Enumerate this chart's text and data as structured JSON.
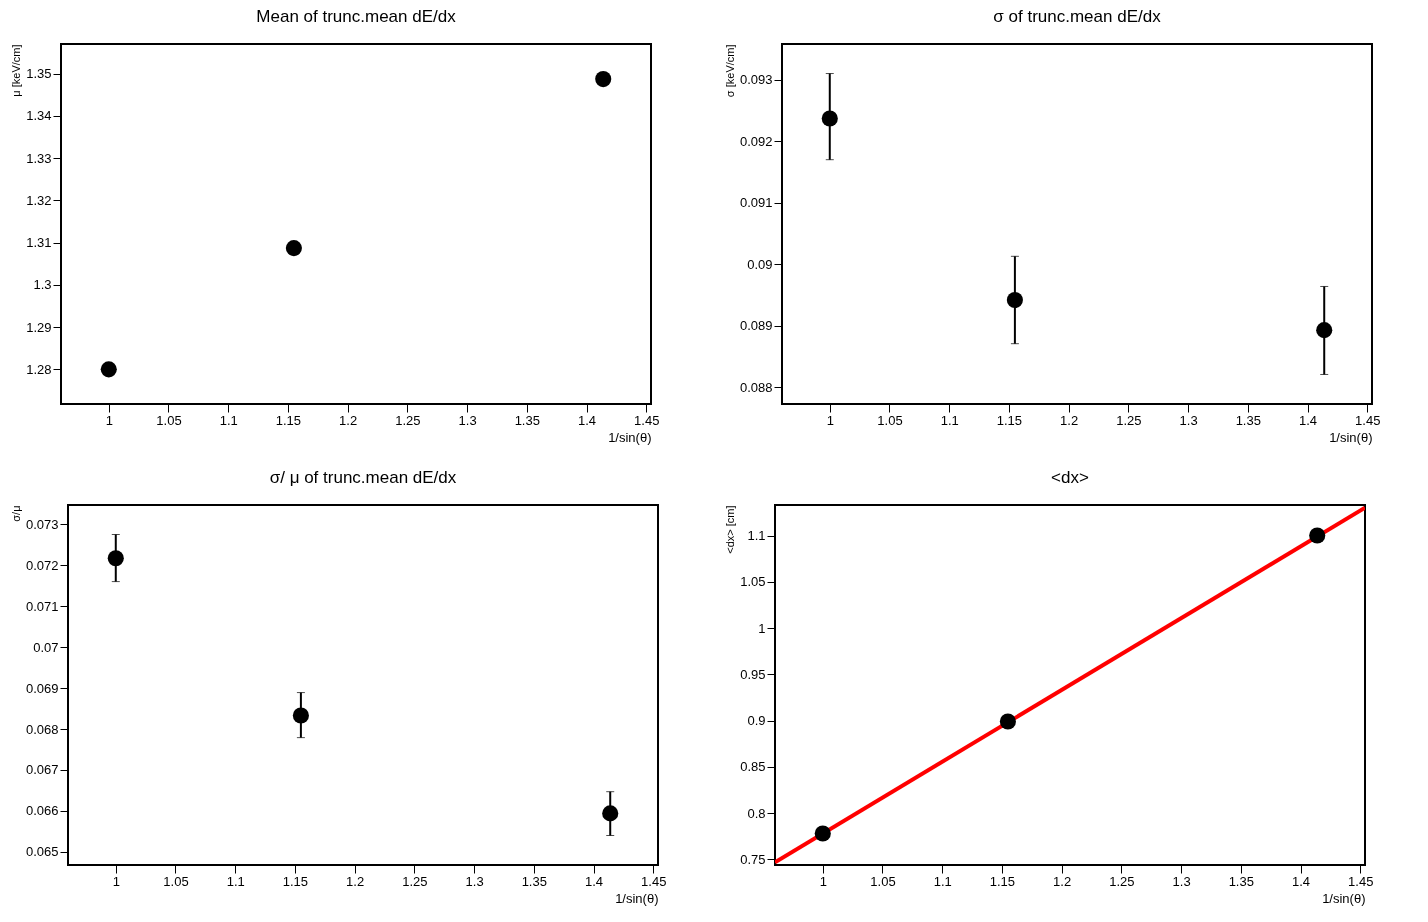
{
  "chart_data": [
    {
      "type": "scatter",
      "title": "Mean of trunc.mean dE/dx",
      "xlabel": "1/sin(θ)",
      "ylabel": "μ [keV/cm]",
      "x": [
        1,
        1.155,
        1.414
      ],
      "marker": "circle",
      "grid": false,
      "xlim": [
        0.96,
        1.454
      ],
      "xticks": [
        1,
        1.05,
        1.1,
        1.15,
        1.2,
        1.25,
        1.3,
        1.35,
        1.4,
        1.45
      ],
      "ylim": [
        1.2718,
        1.357
      ],
      "yticks": [
        1.28,
        1.29,
        1.3,
        1.31,
        1.32,
        1.33,
        1.34,
        1.35
      ],
      "series": [
        {
          "color": "#000000",
          "values": [
            1.28,
            1.3087,
            1.3487
          ]
        }
      ]
    },
    {
      "type": "scatter",
      "title": "σ of trunc.mean dE/dx",
      "xlabel": "1/sin(θ)",
      "ylabel": "σ [keV/cm]",
      "x": [
        1,
        1.155,
        1.414
      ],
      "marker": "circle",
      "grid": false,
      "xlim": [
        0.96,
        1.454
      ],
      "xticks": [
        1,
        1.05,
        1.1,
        1.15,
        1.2,
        1.25,
        1.3,
        1.35,
        1.4,
        1.45
      ],
      "ylim": [
        0.08773,
        0.09358
      ],
      "yticks": [
        0.088,
        0.089,
        0.09,
        0.091,
        0.092,
        0.093
      ],
      "series": [
        {
          "color": "#000000",
          "values": [
            0.09237,
            0.08942,
            0.08893
          ],
          "errors": [
            [
              0.0917,
              0.0931
            ],
            [
              0.08871,
              0.09013
            ],
            [
              0.08821,
              0.08964
            ]
          ]
        }
      ]
    },
    {
      "type": "scatter",
      "title": "σ/ μ of trunc.mean dE/dx",
      "xlabel": "1/sin(θ)",
      "ylabel": "σ/μ",
      "x": [
        1,
        1.155,
        1.414
      ],
      "marker": "circle",
      "grid": false,
      "xlim": [
        0.96,
        1.454
      ],
      "xticks": [
        1,
        1.05,
        1.1,
        1.15,
        1.2,
        1.25,
        1.3,
        1.35,
        1.4,
        1.45
      ],
      "ylim": [
        0.06468,
        0.07347
      ],
      "yticks": [
        0.065,
        0.066,
        0.067,
        0.068,
        0.069,
        0.07,
        0.071,
        0.072,
        0.073
      ],
      "series": [
        {
          "color": "#000000",
          "values": [
            0.07217,
            0.06833,
            0.06594
          ],
          "errors": [
            [
              0.0716,
              0.07275
            ],
            [
              0.06779,
              0.06889
            ],
            [
              0.0654,
              0.06647
            ]
          ]
        }
      ]
    },
    {
      "type": "scatter",
      "title": "<dx>",
      "xlabel": "1/sin(θ)",
      "ylabel": "<dx> [cm]",
      "x": [
        1,
        1.155,
        1.414
      ],
      "marker": "circle",
      "grid": false,
      "xlim": [
        0.96,
        1.454
      ],
      "xticks": [
        1,
        1.05,
        1.1,
        1.15,
        1.2,
        1.25,
        1.3,
        1.35,
        1.4,
        1.45
      ],
      "ylim": [
        0.744,
        1.133
      ],
      "yticks": [
        0.75,
        0.8,
        0.85,
        0.9,
        0.95,
        1,
        1.05,
        1.1
      ],
      "series": [
        {
          "type": "line",
          "color": "#ff0000",
          "line_style": "solid",
          "marker": "none",
          "x": [
            0.96,
            1.454
          ],
          "values": [
            0.747,
            1.13
          ]
        },
        {
          "color": "#000000",
          "values": [
            0.778,
            0.899,
            1.1
          ]
        }
      ]
    }
  ]
}
